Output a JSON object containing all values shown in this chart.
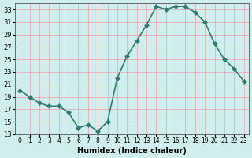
{
  "xlabel": "Humidex (Indice chaleur)",
  "x_values": [
    0,
    1,
    2,
    3,
    4,
    5,
    6,
    7,
    8,
    9,
    10,
    11,
    12,
    13,
    14,
    15,
    16,
    17,
    18,
    19,
    20,
    21,
    22,
    23
  ],
  "y_values": [
    20.0,
    19.0,
    18.0,
    17.5,
    17.5,
    16.5,
    14.0,
    14.5,
    13.5,
    15.0,
    22.0,
    25.5,
    28.0,
    30.5,
    33.5,
    33.0,
    33.5,
    33.5,
    32.5,
    31.0,
    27.5,
    25.0,
    23.5,
    21.5
  ],
  "line_color": "#2e7d6e",
  "marker": "D",
  "marker_size": 3,
  "background_color": "#d0eeee",
  "grid_color": "#f0a0a0",
  "ylim": [
    13,
    34
  ],
  "xlim": [
    -0.5,
    23.5
  ],
  "yticks": [
    13,
    15,
    17,
    19,
    21,
    23,
    25,
    27,
    29,
    31,
    33
  ],
  "xticks": [
    0,
    1,
    2,
    3,
    4,
    5,
    6,
    7,
    8,
    9,
    10,
    11,
    12,
    13,
    14,
    15,
    16,
    17,
    18,
    19,
    20,
    21,
    22,
    23
  ],
  "xtick_labels": [
    "0",
    "1",
    "2",
    "3",
    "4",
    "5",
    "6",
    "7",
    "8",
    "9",
    "10",
    "11",
    "12",
    "13",
    "14",
    "15",
    "16",
    "17",
    "18",
    "19",
    "20",
    "21",
    "22",
    "23"
  ],
  "line_width": 1.2
}
